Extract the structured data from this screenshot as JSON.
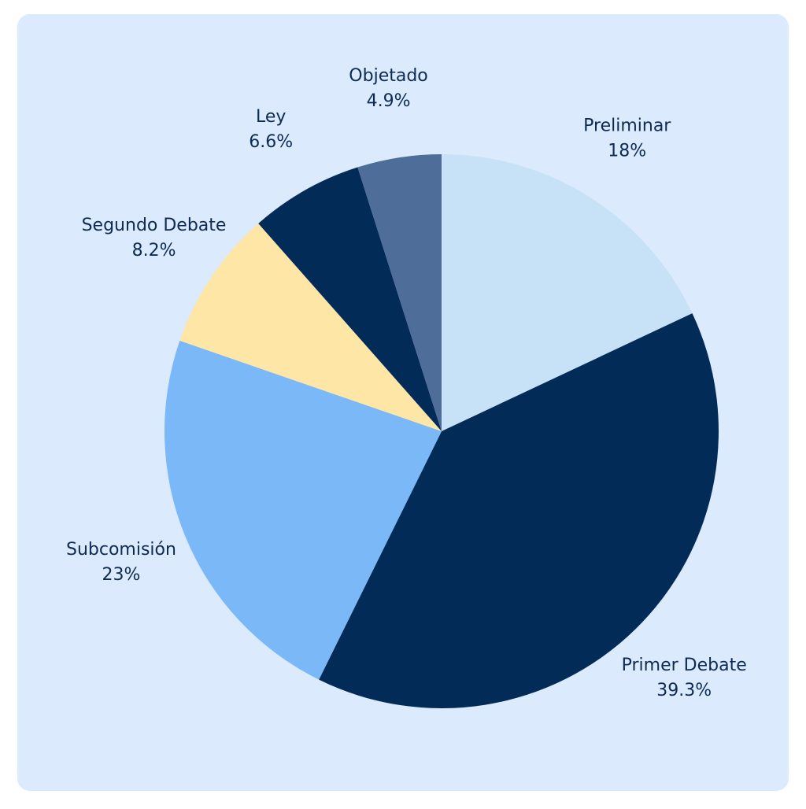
{
  "chart_data": {
    "type": "pie",
    "categories": [
      "Preliminar",
      "Primer Debate",
      "Subcomisión",
      "Segundo Debate",
      "Ley",
      "Objetado"
    ],
    "values": [
      18,
      39.3,
      23,
      8.2,
      6.6,
      4.9
    ],
    "value_labels": [
      "18%",
      "39.3%",
      "23%",
      "8.2%",
      "6.6%",
      "4.9%"
    ],
    "colors": [
      "#c7e1f7",
      "#022b57",
      "#7ab8f8",
      "#fde6a6",
      "#022b57",
      "#4e6d98"
    ]
  }
}
